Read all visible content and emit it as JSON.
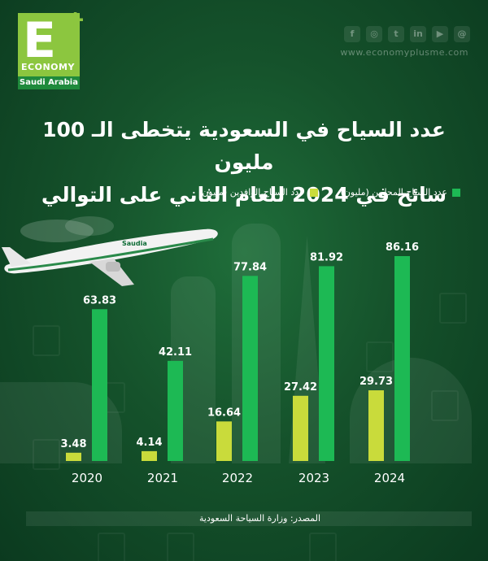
{
  "brand": {
    "logo_letter": "E",
    "logo_plus": "+",
    "logo_word": "ECONOMY",
    "logo_region": "Saudi Arabia",
    "website": "www.economyplusme.com",
    "social_icons": [
      "facebook-icon",
      "instagram-icon",
      "twitter-icon",
      "linkedin-icon",
      "youtube-icon",
      "threads-icon"
    ],
    "colors": {
      "accent_light": "#c9db3b",
      "accent_green": "#1db954",
      "logo_green": "#8cc63f"
    }
  },
  "title": {
    "line1": "عدد السياح في السعودية يتخطى الـ 100 مليون",
    "line2": "سائح في 2024 للعام الثاني على التوالي"
  },
  "source": "المصدر: وزارة السياحة السعودية",
  "airline_label": "Saudia",
  "chart_data": {
    "type": "bar",
    "title": "عدد السياح في السعودية يتخطى الـ 100 مليون سائح في 2024 للعام الثاني على التوالي",
    "xlabel": "",
    "ylabel": "",
    "categories": [
      "2020",
      "2021",
      "2022",
      "2023",
      "2024"
    ],
    "series": [
      {
        "name": "عدد السياح المحليين (مليون)",
        "color": "#1db954",
        "values": [
          63.83,
          42.11,
          77.84,
          81.92,
          86.16
        ]
      },
      {
        "name": "عدد السياح الوافدين (مليون)",
        "color": "#c9db3b",
        "values": [
          3.48,
          4.14,
          16.64,
          27.42,
          29.73
        ]
      }
    ],
    "ylim": [
      0,
      86.16
    ],
    "grid": false,
    "legend": "top-right"
  }
}
